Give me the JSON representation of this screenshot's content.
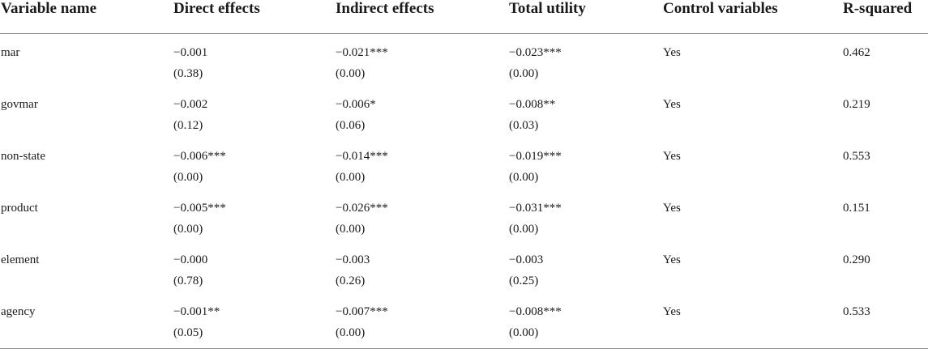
{
  "table": {
    "headers": [
      "Variable name",
      "Direct effects",
      "Indirect effects",
      "Total utility",
      "Control variables",
      "R-squared"
    ],
    "rows": [
      {
        "variable": "mar",
        "direct": "−0.001",
        "direct_se": "(0.38)",
        "indirect": "−0.021***",
        "indirect_se": "(0.00)",
        "total": "−0.023***",
        "total_se": "(0.00)",
        "controls": "Yes",
        "r2": "0.462"
      },
      {
        "variable": "govmar",
        "direct": "−0.002",
        "direct_se": "(0.12)",
        "indirect": "−0.006*",
        "indirect_se": "(0.06)",
        "total": "−0.008**",
        "total_se": "(0.03)",
        "controls": "Yes",
        "r2": "0.219"
      },
      {
        "variable": "non-state",
        "direct": "−0.006***",
        "direct_se": "(0.00)",
        "indirect": "−0.014***",
        "indirect_se": "(0.00)",
        "total": "−0.019***",
        "total_se": "(0.00)",
        "controls": "Yes",
        "r2": "0.553"
      },
      {
        "variable": "product",
        "direct": "−0.005***",
        "direct_se": "(0.00)",
        "indirect": "−0.026***",
        "indirect_se": "(0.00)",
        "total": "−0.031***",
        "total_se": "(0.00)",
        "controls": "Yes",
        "r2": "0.151"
      },
      {
        "variable": "element",
        "direct": "−0.000",
        "direct_se": "(0.78)",
        "indirect": "−0.003",
        "indirect_se": "(0.26)",
        "total": "−0.003",
        "total_se": "(0.25)",
        "controls": "Yes",
        "r2": "0.290"
      },
      {
        "variable": "agency",
        "direct": "−0.001**",
        "direct_se": "(0.05)",
        "indirect": "−0.007***",
        "indirect_se": "(0.00)",
        "total": "−0.008***",
        "total_se": "(0.00)",
        "controls": "Yes",
        "r2": "0.533"
      }
    ]
  }
}
